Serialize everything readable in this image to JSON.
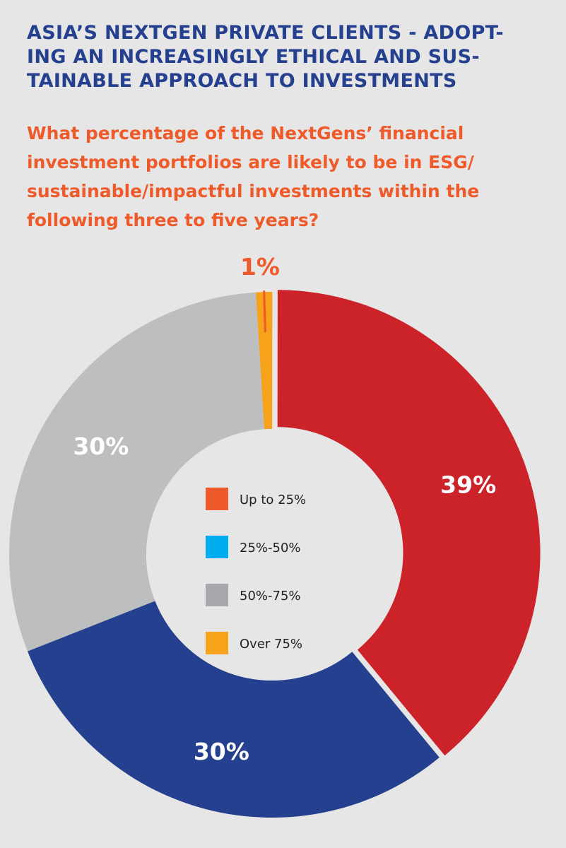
{
  "title_lines": [
    "ASIA’S NEXTGEN PRIVATE CLIENTS - ADOPT-",
    "ING AN INCREASINGLY ETHICAL AND SUS-",
    "TAINABLE APPROACH TO INVESTMENTS"
  ],
  "subtitle_lines": [
    "What percentage of the NextGens’ financial",
    "investment portfolios are likely to be in ESG/",
    "sustainable/impactful investments within the",
    "following three to five years?"
  ],
  "colors": {
    "title": "#24408e",
    "subtitle": "#ef5a2a",
    "background": "#e6e6e6",
    "hole": "#e6e6e6"
  },
  "chart_data": {
    "type": "pie",
    "donut": true,
    "legend_placement": "center",
    "series": [
      {
        "name": "Up to 25%",
        "value": 39,
        "label": "39%",
        "slice_color": "#cc2229",
        "legend_color": "#ef5a2a"
      },
      {
        "name": "25%-50%",
        "value": 30,
        "label": "30%",
        "slice_color": "#24408e",
        "legend_color": "#00aeef"
      },
      {
        "name": "50%-75%",
        "value": 30,
        "label": "30%",
        "slice_color": "#bcbec0",
        "legend_color": "#a7a9ac"
      },
      {
        "name": "Over 75%",
        "value": 1,
        "label": "1%",
        "slice_color": "#f7a21b",
        "legend_color": "#f7a21b"
      }
    ]
  }
}
